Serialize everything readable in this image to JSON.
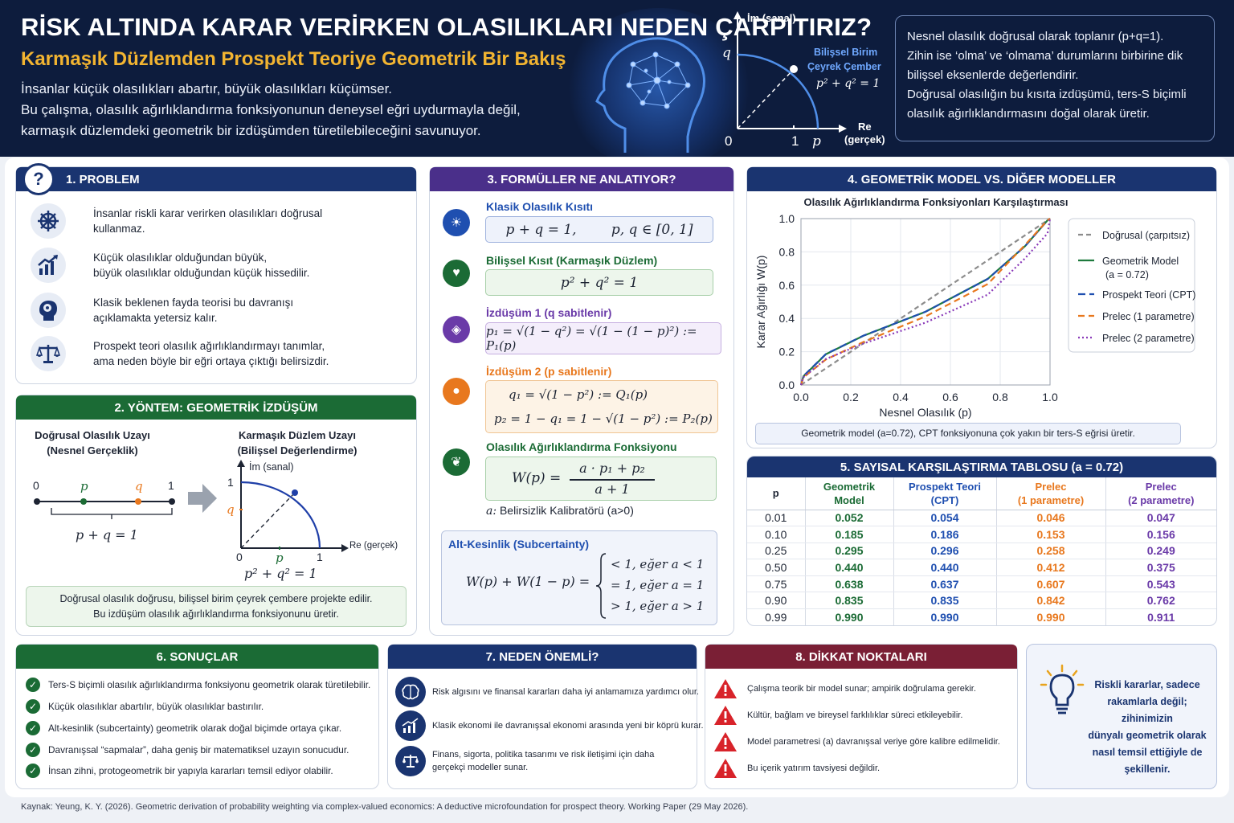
{
  "header": {
    "title": "RİSK ALTINDA KARAR VERİRKEN OLASILIKLARI NEDEN ÇARPITIRIZ?",
    "subtitle": "Karmaşık Düzlemden Prospekt Teoriye Geometrik Bir Bakış",
    "intro_lines": [
      "İnsanlar küçük olasılıkları abartır, büyük olasılıkları küçümser.",
      "Bu çalışma, olasılık ağırlıklandırma fonksiyonunun deneysel eğri uydurmayla değil,",
      "karmaşık düzlemdeki geometrik bir izdüşümden türetilebileceğini savunuyor."
    ],
    "diagram": {
      "im_label": "İm (sanal)",
      "re_label": "Re",
      "re_sub": "(gerçek)",
      "q": "q",
      "p": "p",
      "zero": "0",
      "one": "1",
      "circle_label_1": "Bilişsel Birim",
      "circle_label_2": "Çeyrek Çember",
      "eq": "p² + q² = 1"
    },
    "box_lines": [
      "Nesnel olasılık doğrusal olarak toplanır (p+q=1).",
      "Zihin ise ‘olma’ ve ‘olmama’ durumlarını birbirine dik",
      "bilişsel eksenlerde değerlendirir.",
      "Doğrusal olasılığın bu kısıta izdüşümü, ters-S biçimli",
      "olasılık ağırlıklandırmasını doğal olarak üretir."
    ]
  },
  "problem": {
    "num": "?",
    "title": "1. PROBLEM",
    "items": [
      {
        "icon": "ship-wheel-icon",
        "lines": [
          "İnsanlar riskli karar verirken olasılıkları doğrusal",
          "kullanmaz."
        ]
      },
      {
        "icon": "chart-growth-icon",
        "lines": [
          "Küçük olasılıklar olduğundan büyük,",
          "büyük olasılıklar olduğundan küçük hissedilir."
        ]
      },
      {
        "icon": "head-brain-icon",
        "lines": [
          "Klasik beklenen fayda teorisi bu davranışı",
          "açıklamakta yetersiz kalır."
        ]
      },
      {
        "icon": "scale-icon",
        "lines": [
          "Prospekt teori olasılık ağırlıklandırmayı tanımlar,",
          "ama neden böyle bir eğri ortaya çıktığı belirsizdir."
        ]
      }
    ]
  },
  "method": {
    "title": "2. YÖNTEM: GEOMETRİK İZDÜŞÜM",
    "left_title_1": "Doğrusal Olasılık Uzayı",
    "left_title_2": "(Nesnel Gerçeklik)",
    "right_title_1": "Karmaşık Düzlem Uzayı",
    "right_title_2": "(Bilişsel Değerlendirme)",
    "line_zero": "0",
    "line_p": "p",
    "line_q": "q",
    "line_one": "1",
    "line_eq": "p + q = 1",
    "im_label": "İm (sanal)",
    "re_label": "Re (gerçek)",
    "axis_one_y": "1",
    "axis_q": "q",
    "axis_zero": "0",
    "axis_p": "p",
    "axis_one_x": "1",
    "circle_eq": "p² + q² = 1",
    "note_1": "Doğrusal olasılık doğrusu, bilişsel birim çeyrek çembere projekte edilir.",
    "note_2": "Bu izdüşüm olasılık ağırlıklandırma fonksiyonunu üretir."
  },
  "formulas": {
    "title": "3. FORMÜLLER NE ANLATIYOR?",
    "f1_label": "Klasik Olasılık Kısıtı",
    "f1": "p + q = 1,        p, q ∈ [0, 1]",
    "f2_label": "Bilişsel Kısıt (Karmaşık Düzlem)",
    "f2": "p² + q² = 1",
    "f3_label": "İzdüşüm 1 (q sabitlenir)",
    "f3": "p₁ = √(1 − q²) = √(1 − (1 − p)²) := P₁(p)",
    "f4_label": "İzdüşüm 2 (p sabitlenir)",
    "f4a": "q₁ = √(1 − p²) := Q₁(p)",
    "f4b": "p₂ = 1 − q₁ = 1 − √(1 − p²) := P₂(p)",
    "f5_label": "Olasılık Ağırlıklandırma Fonksiyonu",
    "f5_lhs": "W(p) =",
    "f5_num": "a · p₁ + p₂",
    "f5_den": "a + 1",
    "f5_note_var": "a:",
    "f5_note": "Belirsizlik Kalibratörü (a>0)",
    "sub_label": "Alt-Kesinlik (Subcertainty)",
    "sub_lhs": "W(p) + W(1 − p) =",
    "sub_cases": [
      "< 1,  eğer a < 1",
      "= 1,  eğer a = 1",
      "> 1,  eğer a > 1"
    ]
  },
  "comparison": {
    "title": "4. GEOMETRİK MODEL VS. DİĞER MODELLER",
    "note": "Geometrik model (a=0.72), CPT fonksiyonuna çok yakın bir ters-S eğrisi üretir."
  },
  "chart_data": {
    "type": "line",
    "title": "Olasılık Ağırlıklandırma Fonksiyonları Karşılaştırması",
    "xlabel": "Nesnel Olasılık (p)",
    "ylabel": "Karar Ağırlığı W(p)",
    "xlim": [
      0,
      1
    ],
    "ylim": [
      0,
      1
    ],
    "xticks": [
      "0.0",
      "0.2",
      "0.4",
      "0.6",
      "0.8",
      "1.0"
    ],
    "yticks": [
      "0.0",
      "0.2",
      "0.4",
      "0.6",
      "0.8",
      "1.0"
    ],
    "grid": true,
    "legend_position": "right",
    "x": [
      0,
      0.01,
      0.1,
      0.25,
      0.5,
      0.75,
      0.9,
      0.99,
      1.0
    ],
    "series": [
      {
        "name": "Doğrusal (çarpıtsız)",
        "color": "#8c8c8c",
        "dash": "6,4",
        "values": [
          0,
          0.01,
          0.1,
          0.25,
          0.5,
          0.75,
          0.9,
          0.99,
          1.0
        ]
      },
      {
        "name": "Geometrik Model (a = 0.72)",
        "color": "#1e7a3d",
        "dash": "",
        "values": [
          0,
          0.052,
          0.185,
          0.295,
          0.44,
          0.638,
          0.835,
          0.99,
          1.0
        ]
      },
      {
        "name": "Prospekt Teori (CPT)",
        "color": "#1f4fb0",
        "dash": "9,5",
        "values": [
          0,
          0.054,
          0.186,
          0.296,
          0.44,
          0.637,
          0.835,
          0.99,
          1.0
        ]
      },
      {
        "name": "Prelec (1 parametre)",
        "color": "#e8781e",
        "dash": "8,5",
        "values": [
          0,
          0.046,
          0.153,
          0.258,
          0.412,
          0.607,
          0.842,
          0.99,
          1.0
        ]
      },
      {
        "name": "Prelec (2 parametre)",
        "color": "#8a3ab9",
        "dash": "2,3",
        "values": [
          0,
          0.047,
          0.156,
          0.249,
          0.375,
          0.543,
          0.762,
          0.911,
          1.0
        ]
      }
    ]
  },
  "table": {
    "title": "5. SAYISAL KARŞILAŞTIRMA TABLOSU (a = 0.72)",
    "headers": [
      [
        "p",
        ""
      ],
      [
        "Geometrik",
        "Model"
      ],
      [
        "Prospekt Teori",
        "(CPT)"
      ],
      [
        "Prelec",
        "(1 parametre)"
      ],
      [
        "Prelec",
        "(2 parametre)"
      ]
    ],
    "rows": [
      [
        "0.01",
        "0.052",
        "0.054",
        "0.046",
        "0.047"
      ],
      [
        "0.10",
        "0.185",
        "0.186",
        "0.153",
        "0.156"
      ],
      [
        "0.25",
        "0.295",
        "0.296",
        "0.258",
        "0.249"
      ],
      [
        "0.50",
        "0.440",
        "0.440",
        "0.412",
        "0.375"
      ],
      [
        "0.75",
        "0.638",
        "0.637",
        "0.607",
        "0.543"
      ],
      [
        "0.90",
        "0.835",
        "0.835",
        "0.842",
        "0.762"
      ],
      [
        "0.99",
        "0.990",
        "0.990",
        "0.990",
        "0.911"
      ]
    ]
  },
  "results": {
    "title": "6. SONUÇLAR",
    "items": [
      "Ters-S biçimli olasılık ağırlıklandırma fonksiyonu geometrik olarak türetilebilir.",
      "Küçük olasılıklar abartılır, büyük olasılıklar bastırılır.",
      "Alt-kesinlik (subcertainty) geometrik olarak doğal biçimde ortaya çıkar.",
      "Davranışsal “sapmalar”, daha geniş bir matematiksel uzayın sonucudur.",
      "İnsan zihni, protogeometrik bir yapıyla kararları temsil ediyor olabilir."
    ]
  },
  "importance": {
    "title": "7. NEDEN ÖNEMLİ?",
    "items": [
      {
        "icon": "brain-icon",
        "lines": [
          "Risk algısını ve finansal kararları daha iyi anlamamıza yardımcı olur."
        ]
      },
      {
        "icon": "growth-chart-icon",
        "lines": [
          "Klasik ekonomi ile davranışsal ekonomi arasında yeni bir köprü kurar."
        ]
      },
      {
        "icon": "balance-icon",
        "lines": [
          "Finans, sigorta, politika tasarımı ve risk iletişimi için daha",
          "gerçekçi modeller sunar."
        ]
      }
    ]
  },
  "caveats": {
    "title": "8. DİKKAT NOKTALARI",
    "items": [
      "Çalışma teorik bir model sunar; ampirik doğrulama gerekir.",
      "Kültür, bağlam ve bireysel farklılıklar süreci etkileyebilir.",
      "Model parametresi (a) davranışsal veriye göre kalibre edilmelidir.",
      "Bu içerik yatırım tavsiyesi değildir."
    ]
  },
  "takeaway": {
    "lines": [
      "Riskli kararlar, sadece",
      "rakamlarla değil; zihinimizin",
      "dünyalı geometrik olarak",
      "nasıl temsil ettiğiyle de",
      "şekillenir."
    ]
  },
  "source": "Kaynak: Yeung, K. Y. (2026). Geometric derivation of probability weighting via complex-valued economics: A deductive microfoundation for prospect theory. Working Paper (29 May 2026).",
  "colors": {
    "navy": "#0d1c3d",
    "blue": "#1a3470",
    "green": "#1b6b35",
    "purple": "#4a2f8a",
    "orange": "#e8781e",
    "red": "#7a1f35",
    "gold": "#f2b431"
  }
}
